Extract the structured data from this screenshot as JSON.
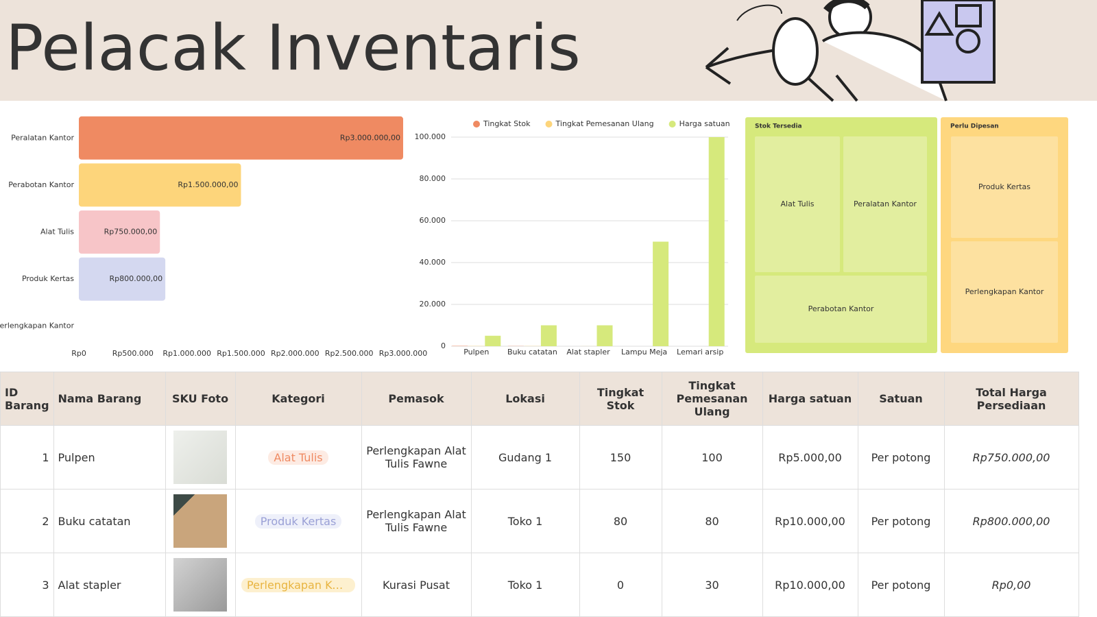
{
  "header": {
    "title": "Pelacak Inventaris"
  },
  "chart_data": [
    {
      "type": "barh",
      "categories": [
        "Peralatan Kantor",
        "Perabotan Kantor",
        "Alat Tulis",
        "Produk Kertas",
        "Perlengkapan Kantor"
      ],
      "values": [
        3000000,
        1500000,
        750000,
        800000,
        0
      ],
      "value_labels": [
        "Rp3.000.000,00",
        "Rp1.500.000,00",
        "Rp750.000,00",
        "Rp800.000,00",
        null
      ],
      "colors": [
        "#ef8a62",
        "#fdd57b",
        "#f7c5c8",
        "#d4d8f0",
        null
      ],
      "xlim": [
        0,
        3000000
      ],
      "xticks": [
        {
          "value": 0,
          "label": "Rp0"
        },
        {
          "value": 500000,
          "label": "Rp500.000"
        },
        {
          "value": 1000000,
          "label": "Rp1.000.000"
        },
        {
          "value": 1500000,
          "label": "Rp1.500.000"
        },
        {
          "value": 2000000,
          "label": "Rp2.000.000"
        },
        {
          "value": 2500000,
          "label": "Rp2.500.000"
        },
        {
          "value": 3000000,
          "label": "Rp3.000.000"
        }
      ],
      "grid": false
    },
    {
      "type": "bar",
      "categories": [
        "Pulpen",
        "Buku catatan",
        "Alat stapler",
        "Lampu Meja",
        "Lemari arsip"
      ],
      "series": [
        {
          "name": "Tingkat Stok",
          "color": "#ef8a62",
          "values": [
            150,
            80,
            0,
            0,
            0
          ]
        },
        {
          "name": "Tingkat Pemesanan Ulang",
          "color": "#fdd57b",
          "values": [
            100,
            80,
            30,
            0,
            0
          ]
        },
        {
          "name": "Harga satuan",
          "color": "#d6e97c",
          "values": [
            5000,
            10000,
            10000,
            50000,
            100000
          ]
        }
      ],
      "ylim": [
        0,
        100000
      ],
      "yticks": [
        0,
        {
          "value": 20000,
          "label": "20.000"
        },
        {
          "value": 40000,
          "label": "40.000"
        },
        {
          "value": 60000,
          "label": "60.000"
        },
        {
          "value": 80000,
          "label": "80.000"
        },
        {
          "value": 100000,
          "label": "100.000"
        }
      ],
      "grid": true,
      "legend": "top"
    },
    {
      "type": "treemap",
      "groups": [
        {
          "name": "Stok Tersedia",
          "color": "#d6e97c",
          "leaf_color": "#e2ee9f",
          "items": [
            "Alat Tulis",
            "Peralatan Kantor",
            "Perabotan Kantor"
          ]
        },
        {
          "name": "Perlu Dipesan",
          "color": "#fed77f",
          "leaf_color": "#fde1a0",
          "items": [
            "Produk Kertas",
            "Perlengkapan Kantor"
          ]
        }
      ]
    }
  ],
  "table": {
    "columns": [
      "ID Barang",
      "Nama Barang",
      "SKU Foto",
      "Kategori",
      "Pemasok",
      "Lokasi",
      "Tingkat Stok",
      "Tingkat Pemesanan Ulang",
      "Harga satuan",
      "Satuan",
      "Total Harga Persediaan"
    ],
    "rows": [
      {
        "id": 1,
        "name": "Pulpen",
        "category": "Alat Tulis",
        "supplier": "Perlengkapan Alat Tulis Fawne",
        "location": "Gudang 1",
        "stock": 150,
        "reorder": 100,
        "price": "Rp5.000,00",
        "unit": "Per potong",
        "total": "Rp750.000,00"
      },
      {
        "id": 2,
        "name": "Buku catatan",
        "category": "Produk Kertas",
        "supplier": "Perlengkapan Alat Tulis Fawne",
        "location": "Toko 1",
        "stock": 80,
        "reorder": 80,
        "price": "Rp10.000,00",
        "unit": "Per potong",
        "total": "Rp800.000,00"
      },
      {
        "id": 3,
        "name": "Alat stapler",
        "category": "Perlengkapan Kantor",
        "supplier": "Kurasi Pusat",
        "location": "Toko 1",
        "stock": 0,
        "reorder": 30,
        "price": "Rp10.000,00",
        "unit": "Per potong",
        "total": "Rp0,00"
      }
    ]
  }
}
